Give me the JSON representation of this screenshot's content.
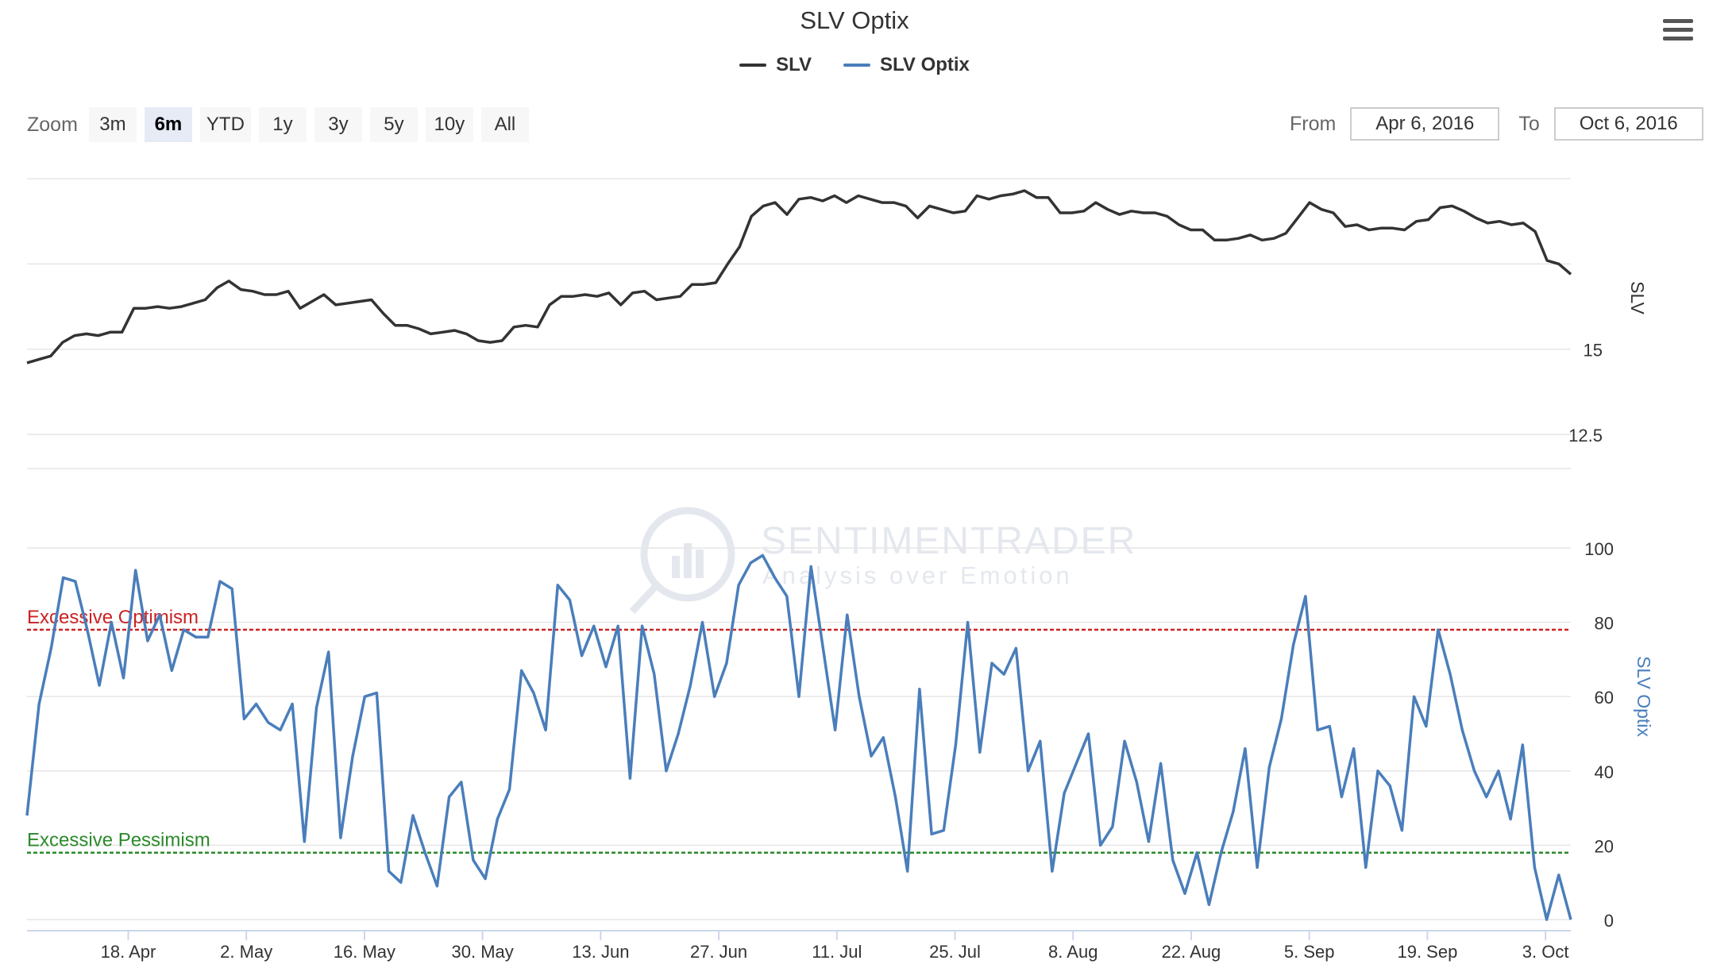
{
  "title": "SLV Optix",
  "legend": [
    {
      "name": "SLV",
      "color": "#333333"
    },
    {
      "name": "SLV Optix",
      "color": "#4a7ebb"
    }
  ],
  "toolbar": {
    "menu_icon": "hamburger-menu-icon",
    "zoom_label": "Zoom",
    "zoom_buttons": [
      "3m",
      "6m",
      "YTD",
      "1y",
      "3y",
      "5y",
      "10y",
      "All"
    ],
    "zoom_active": "6m",
    "from_label": "From",
    "from_value": "Apr 6, 2016",
    "to_label": "To",
    "to_value": "Oct 6, 2016"
  },
  "watermark": {
    "title": "SENTIMENTRADER",
    "subtitle": "Analysis over Emotion"
  },
  "chart_data": [
    {
      "type": "line",
      "series": [
        {
          "name": "SLV",
          "color": "#333333"
        }
      ],
      "ylabel": "SLV",
      "yticks": [
        12.5,
        15
      ],
      "ylim": [
        11.5,
        20.7
      ],
      "grid": true,
      "x_start": "2016-04-06",
      "x_end": "2016-10-06",
      "x_tick_labels": [
        "18. Apr",
        "2. May",
        "16. May",
        "30. May",
        "13. Jun",
        "27. Jun",
        "11. Jul",
        "25. Jul",
        "8. Aug",
        "22. Aug",
        "5. Sep",
        "19. Sep",
        "3. Oct"
      ],
      "x_tick_dates": [
        "2016-04-18",
        "2016-05-02",
        "2016-05-16",
        "2016-05-30",
        "2016-06-13",
        "2016-06-27",
        "2016-07-11",
        "2016-07-25",
        "2016-08-08",
        "2016-08-22",
        "2016-09-05",
        "2016-09-19",
        "2016-10-03"
      ],
      "values": [
        14.6,
        14.7,
        14.8,
        15.2,
        15.4,
        15.45,
        15.4,
        15.5,
        15.5,
        16.2,
        16.2,
        16.25,
        16.2,
        16.25,
        16.35,
        16.45,
        16.8,
        17.0,
        16.75,
        16.7,
        16.6,
        16.6,
        16.7,
        16.2,
        16.4,
        16.6,
        16.3,
        16.35,
        16.4,
        16.45,
        16.05,
        15.7,
        15.7,
        15.6,
        15.45,
        15.5,
        15.55,
        15.45,
        15.25,
        15.2,
        15.25,
        15.65,
        15.7,
        15.65,
        16.3,
        16.55,
        16.55,
        16.6,
        16.55,
        16.65,
        16.3,
        16.65,
        16.7,
        16.45,
        16.5,
        16.55,
        16.9,
        16.9,
        16.95,
        17.5,
        18.0,
        18.9,
        19.2,
        19.3,
        18.95,
        19.4,
        19.45,
        19.35,
        19.5,
        19.3,
        19.5,
        19.4,
        19.3,
        19.3,
        19.2,
        18.85,
        19.2,
        19.1,
        19.0,
        19.05,
        19.5,
        19.4,
        19.5,
        19.55,
        19.65,
        19.45,
        19.45,
        19.0,
        19.0,
        19.05,
        19.3,
        19.1,
        18.95,
        19.05,
        19.0,
        19.0,
        18.9,
        18.65,
        18.5,
        18.5,
        18.2,
        18.2,
        18.25,
        18.35,
        18.2,
        18.25,
        18.4,
        18.85,
        19.3,
        19.1,
        19.0,
        18.6,
        18.65,
        18.5,
        18.55,
        18.55,
        18.5,
        18.75,
        18.8,
        19.15,
        19.2,
        19.05,
        18.85,
        18.7,
        18.75,
        18.65,
        18.7,
        18.45,
        17.6,
        17.5,
        17.2
      ]
    },
    {
      "type": "line",
      "series": [
        {
          "name": "SLV Optix",
          "color": "#4a7ebb"
        }
      ],
      "ylabel": "SLV Optix",
      "yticks": [
        0,
        20,
        40,
        60,
        80,
        100
      ],
      "ylim": [
        -3,
        100
      ],
      "grid": true,
      "reference_lines": [
        {
          "label": "Excessive Optimism",
          "value": 78,
          "color": "#cc2222"
        },
        {
          "label": "Excessive Pessimism",
          "value": 18,
          "color": "#2a8a2a"
        }
      ],
      "values": [
        28,
        58,
        73,
        92,
        91,
        78,
        63,
        80,
        65,
        94,
        75,
        82,
        67,
        78,
        76,
        76,
        91,
        89,
        54,
        58,
        53,
        51,
        58,
        21,
        57,
        72,
        22,
        44,
        60,
        61,
        13,
        10,
        28,
        18,
        9,
        33,
        37,
        16,
        11,
        27,
        35,
        67,
        61,
        51,
        90,
        86,
        71,
        79,
        68,
        79,
        38,
        79,
        66,
        40,
        50,
        63,
        80,
        60,
        69,
        90,
        96,
        98,
        92,
        87,
        60,
        95,
        73,
        51,
        82,
        60,
        44,
        49,
        33,
        13,
        62,
        23,
        24,
        47,
        80,
        45,
        69,
        66,
        73,
        40,
        48,
        13,
        34,
        42,
        50,
        20,
        25,
        48,
        37,
        21,
        42,
        16,
        7,
        18,
        4,
        18,
        29,
        46,
        14,
        41,
        54,
        74,
        87,
        51,
        52,
        33,
        46,
        14,
        40,
        36,
        24,
        60,
        52,
        78,
        66,
        51,
        40,
        33,
        40,
        27,
        47,
        14,
        0,
        12,
        0
      ]
    }
  ]
}
